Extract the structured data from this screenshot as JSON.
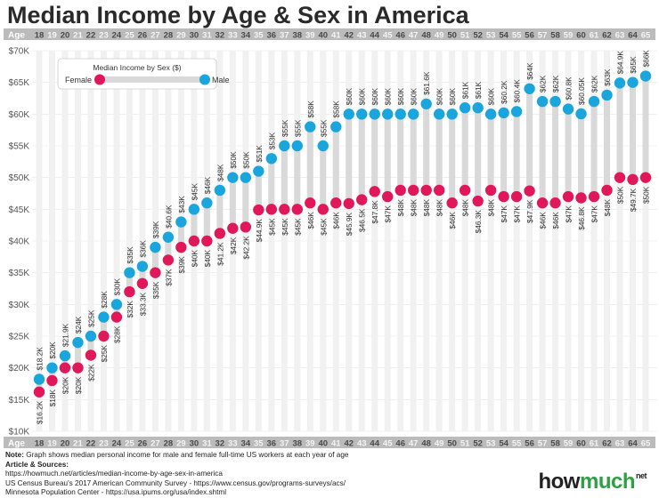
{
  "chart_data": {
    "type": "dumbbell",
    "title": "Median Income by Age & Sex in America",
    "axis_label": "Age",
    "legend": {
      "title": "Median Income by Sex ($)",
      "female": "Female",
      "male": "Male"
    },
    "colors": {
      "female": "#e0185a",
      "male": "#1aa5dc",
      "bar": "#d9d9d9",
      "axis_band": "#bbbbbb",
      "grid": "#e3e3e3"
    },
    "ylim": [
      10000,
      70000
    ],
    "yticks": [
      {
        "value": 10000,
        "label": "$10K"
      },
      {
        "value": 15000,
        "label": "$15K"
      },
      {
        "value": 20000,
        "label": "$20K"
      },
      {
        "value": 25000,
        "label": "$25K"
      },
      {
        "value": 30000,
        "label": "$30K"
      },
      {
        "value": 35000,
        "label": "$35K"
      },
      {
        "value": 40000,
        "label": "$40K"
      },
      {
        "value": 45000,
        "label": "$45K"
      },
      {
        "value": 50000,
        "label": "$50K"
      },
      {
        "value": 55000,
        "label": "$55K"
      },
      {
        "value": 60000,
        "label": "$60K"
      },
      {
        "value": 65000,
        "label": "$65K"
      },
      {
        "value": 70000,
        "label": "$70K"
      }
    ],
    "ages": [
      18,
      19,
      20,
      21,
      22,
      23,
      24,
      25,
      26,
      27,
      28,
      29,
      30,
      31,
      32,
      33,
      34,
      35,
      36,
      37,
      38,
      39,
      40,
      41,
      42,
      43,
      44,
      45,
      46,
      47,
      48,
      49,
      50,
      51,
      52,
      53,
      54,
      55,
      56,
      57,
      58,
      59,
      60,
      61,
      62,
      63,
      64,
      65
    ],
    "female": [
      16200,
      18000,
      20000,
      20000,
      22000,
      25000,
      28000,
      32000,
      33300,
      35000,
      37000,
      39000,
      40000,
      40000,
      41200,
      42000,
      42200,
      44900,
      45000,
      45000,
      45000,
      46000,
      45000,
      46000,
      45900,
      46500,
      47800,
      47000,
      48000,
      48000,
      48000,
      48000,
      46000,
      48000,
      46300,
      48000,
      47000,
      47000,
      47900,
      46000,
      46000,
      47000,
      46800,
      47000,
      48000,
      50000,
      49700,
      50000
    ],
    "male": [
      18200,
      20000,
      21900,
      24000,
      25000,
      28000,
      30000,
      35000,
      36000,
      39000,
      40600,
      43000,
      45000,
      46000,
      48000,
      50000,
      50000,
      51000,
      53000,
      55000,
      55000,
      58000,
      55000,
      58000,
      60000,
      60000,
      60000,
      60000,
      60000,
      60000,
      61600,
      60000,
      60000,
      61000,
      61000,
      60000,
      60200,
      60400,
      64000,
      62000,
      62000,
      60800,
      60050,
      62000,
      63000,
      64900,
      65000,
      66000
    ],
    "female_labels": [
      "$16.2K",
      "$18K",
      "$20K",
      "$20K",
      "$22K",
      "$25K",
      "$28K",
      "$32K",
      "$33.3K",
      "$35K",
      "$37K",
      "$39K",
      "$40K",
      "$40K",
      "$41.2K",
      "$42K",
      "$42.2K",
      "$44.9K",
      "$45K",
      "$45K",
      "$45K",
      "$46K",
      "$45K",
      "$46K",
      "$45.9K",
      "$46.5K",
      "$47.8K",
      "$47K",
      "$48K",
      "$48K",
      "$48K",
      "$48K",
      "$46K",
      "$48K",
      "$46.3K",
      "$48K",
      "$47K",
      "$47K",
      "$47.9K",
      "$46K",
      "$46K",
      "$47K",
      "$46.8K",
      "$47K",
      "$48K",
      "$50K",
      "$49.7K",
      "$50K"
    ],
    "male_labels": [
      "$18.2K",
      "$20K",
      "$21.9K",
      "$24K",
      "$25K",
      "$28K",
      "$30K",
      "$35K",
      "$36K",
      "$39K",
      "$40.6K",
      "$43K",
      "$45K",
      "$46K",
      "$48K",
      "$50K",
      "$50K",
      "$51K",
      "$53K",
      "$55K",
      "$55K",
      "$58K",
      "$55K",
      "$58K",
      "$60K",
      "$60K",
      "$60K",
      "$60K",
      "$60K",
      "$60K",
      "$61.6K",
      "$60K",
      "$60K",
      "$61K",
      "$61K",
      "$60K",
      "$60.2K",
      "$60.4K",
      "$64K",
      "$62K",
      "$62K",
      "$60.8K",
      "$60.05K",
      "$62K",
      "$63K",
      "$64.9K",
      "$65K",
      "$66K"
    ]
  },
  "footer": {
    "note_label": "Note:",
    "note_text": "Graph shows median personal income for male and female full-time US workers at each year of age",
    "sources_label": "Article & Sources:",
    "source_1": "https://howmuch.net/articles/median-income-by-age-sex-in-america",
    "source_2": "US Census Bureau's 2017 American Community Survey - https://www.census.gov/programs-surveys/acs/",
    "source_3": "Minnesota Population Center - https://usa.ipums.org/usa/index.shtml"
  },
  "brand": {
    "how": "how",
    "much": "much",
    "net": "net"
  }
}
